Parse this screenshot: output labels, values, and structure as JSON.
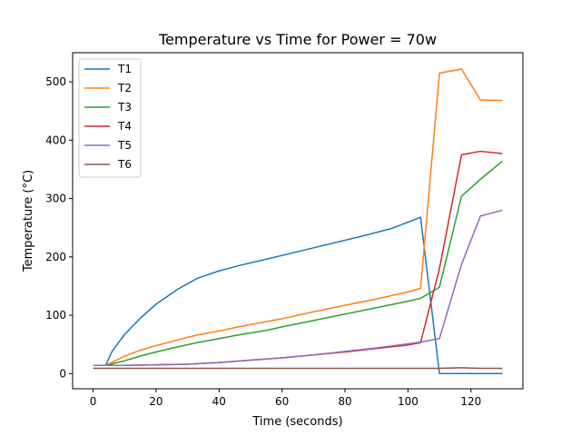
{
  "chart_data": {
    "type": "line",
    "title": "Temperature vs Time for Power = 70w",
    "xlabel": "Time (seconds)",
    "ylabel": "Temperature (°C)",
    "xlim": [
      -6.5,
      136.5
    ],
    "ylim": [
      -26,
      550
    ],
    "xticks": [
      0,
      20,
      40,
      60,
      80,
      100,
      120
    ],
    "yticks": [
      0,
      100,
      200,
      300,
      400,
      500
    ],
    "grid": false,
    "legend_position": "top-left",
    "series": [
      {
        "name": "T1",
        "color": "#1f77b4",
        "x": [
          0,
          4,
          6,
          10,
          15,
          20,
          27,
          33,
          40,
          47,
          55,
          65,
          75,
          85,
          95,
          104,
          110,
          117,
          123,
          130
        ],
        "y": [
          14,
          14,
          38,
          67,
          95,
          119,
          145,
          163,
          176,
          186,
          196,
          209,
          222,
          235,
          249,
          268,
          0,
          0,
          0,
          0
        ]
      },
      {
        "name": "T2",
        "color": "#ff7f0e",
        "x": [
          0,
          4,
          10,
          15,
          20,
          27,
          33,
          40,
          47,
          55,
          60,
          70,
          80,
          90,
          100,
          104,
          110,
          117,
          123,
          130
        ],
        "y": [
          14,
          14,
          30,
          40,
          48,
          58,
          66,
          73,
          81,
          89,
          94,
          106,
          117,
          128,
          140,
          146,
          515,
          522,
          469,
          468
        ]
      },
      {
        "name": "T3",
        "color": "#2ca02c",
        "x": [
          0,
          4,
          10,
          15,
          20,
          27,
          33,
          40,
          47,
          55,
          60,
          70,
          80,
          90,
          100,
          104,
          110,
          117,
          123,
          130
        ],
        "y": [
          14,
          14,
          22,
          30,
          37,
          46,
          53,
          60,
          67,
          74,
          80,
          91,
          102,
          113,
          124,
          129,
          148,
          304,
          333,
          364
        ]
      },
      {
        "name": "T4",
        "color": "#d62728",
        "x": [
          0,
          4,
          10,
          20,
          30,
          40,
          50,
          60,
          70,
          80,
          90,
          100,
          104,
          110,
          117,
          123,
          130
        ],
        "y": [
          14,
          14,
          14,
          15,
          16,
          19,
          23,
          27,
          32,
          37,
          43,
          49,
          53,
          180,
          375,
          381,
          377
        ]
      },
      {
        "name": "T5",
        "color": "#9467bd",
        "x": [
          0,
          4,
          10,
          20,
          30,
          40,
          50,
          60,
          70,
          80,
          90,
          100,
          104,
          110,
          117,
          123,
          130
        ],
        "y": [
          14,
          14,
          14,
          15,
          16,
          19,
          23,
          27,
          32,
          38,
          44,
          51,
          54,
          60,
          187,
          270,
          280
        ]
      },
      {
        "name": "T6",
        "color": "#8c564b",
        "x": [
          0,
          10,
          20,
          40,
          60,
          80,
          100,
          104,
          110,
          117,
          123,
          130
        ],
        "y": [
          9,
          9,
          9,
          9,
          9,
          9,
          9,
          9,
          9,
          10,
          9,
          9
        ]
      }
    ]
  }
}
